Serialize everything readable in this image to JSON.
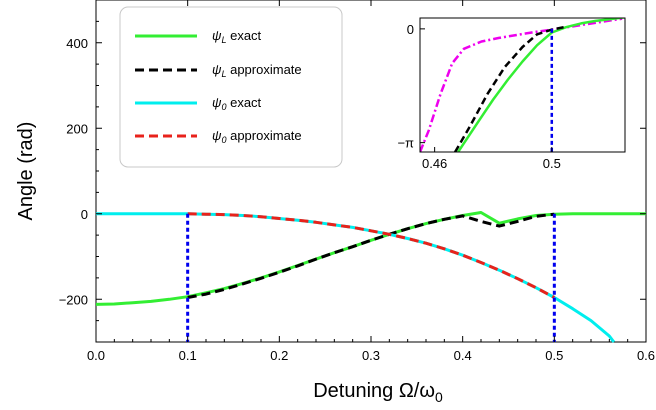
{
  "chart_data": {
    "type": "line",
    "xlabel": "Detuning Ω/ω",
    "xlabel_sub": "0",
    "ylabel": "Angle  (rad)",
    "xlim": [
      0.0,
      0.6
    ],
    "ylim": [
      -300,
      500
    ],
    "xticks": [
      0.0,
      0.1,
      0.2,
      0.3,
      0.4,
      0.5,
      0.6
    ],
    "xtick_labels": [
      "0.0",
      "0.1",
      "0.2",
      "0.3",
      "0.4",
      "0.5",
      "0.6"
    ],
    "yticks": [
      -200,
      0,
      200,
      400
    ],
    "ytick_labels": [
      "−200",
      "0",
      "200",
      "400"
    ],
    "grid": false,
    "legend_position": "top-left",
    "colors": {
      "psiL_exact": "#33ee33",
      "psiL_approx": "#000000",
      "psi0_exact": "#00eeee",
      "psi0_approx": "#e8221b",
      "vlines": "#0000ee",
      "inset_dashdot": "#ee00ee"
    },
    "legend": [
      {
        "sym": "ψ",
        "sub": "L",
        "text": " exact"
      },
      {
        "sym": "ψ",
        "sub": "L",
        "text": " approximate"
      },
      {
        "sym": "ψ",
        "sub": "0",
        "text": " exact"
      },
      {
        "sym": "ψ",
        "sub": "0",
        "text": " approximate"
      }
    ],
    "series": [
      {
        "key": "psiL_exact",
        "style": "solid",
        "x": [
          0.0,
          0.02,
          0.04,
          0.06,
          0.08,
          0.1,
          0.12,
          0.14,
          0.16,
          0.18,
          0.2,
          0.22,
          0.24,
          0.26,
          0.28,
          0.3,
          0.32,
          0.34,
          0.36,
          0.38,
          0.4,
          0.42,
          0.44,
          0.46,
          0.48,
          0.5,
          0.52,
          0.54,
          0.56,
          0.58,
          0.6
        ],
        "y": [
          -212,
          -211,
          -208,
          -205,
          -200,
          -194,
          -185,
          -175,
          -163,
          -150,
          -136,
          -121,
          -106,
          -91,
          -77,
          -62,
          -48,
          -35,
          -23,
          -13,
          -4,
          3,
          -22,
          -12,
          -4,
          -1,
          0,
          0,
          0,
          0,
          0
        ]
      },
      {
        "key": "psiL_approx",
        "style": "dashed",
        "x": [
          0.1,
          0.12,
          0.14,
          0.16,
          0.18,
          0.2,
          0.22,
          0.24,
          0.26,
          0.28,
          0.3,
          0.32,
          0.34,
          0.36,
          0.38,
          0.4,
          0.42,
          0.44,
          0.46,
          0.48,
          0.5
        ],
        "y": [
          -196,
          -188,
          -177,
          -164,
          -151,
          -137,
          -122,
          -106,
          -91,
          -77,
          -62,
          -48,
          -35,
          -23,
          -13,
          -5,
          -18,
          -29,
          -18,
          -6,
          -1
        ]
      },
      {
        "key": "psi0_exact",
        "style": "solid",
        "x": [
          0.0,
          0.02,
          0.04,
          0.06,
          0.08,
          0.1,
          0.12,
          0.14,
          0.16,
          0.18,
          0.2,
          0.22,
          0.24,
          0.26,
          0.28,
          0.3,
          0.32,
          0.34,
          0.36,
          0.38,
          0.4,
          0.42,
          0.44,
          0.46,
          0.48,
          0.5,
          0.52,
          0.54,
          0.56,
          0.565
        ],
        "y": [
          0,
          0,
          0,
          0,
          0,
          0,
          -1,
          -2,
          -4,
          -7,
          -11,
          -15,
          -20,
          -26,
          -32,
          -40,
          -48,
          -58,
          -69,
          -82,
          -97,
          -114,
          -132,
          -152,
          -173,
          -196,
          -222,
          -250,
          -286,
          -300
        ]
      },
      {
        "key": "psi0_approx",
        "style": "dashed",
        "x": [
          0.1,
          0.12,
          0.14,
          0.16,
          0.18,
          0.2,
          0.22,
          0.24,
          0.26,
          0.28,
          0.3,
          0.32,
          0.34,
          0.36,
          0.38,
          0.4,
          0.42,
          0.44,
          0.46,
          0.48,
          0.5
        ],
        "y": [
          0,
          -1,
          -2,
          -4,
          -7,
          -11,
          -15,
          -20,
          -26,
          -32,
          -40,
          -48,
          -58,
          -69,
          -82,
          -97,
          -114,
          -132,
          -152,
          -173,
          -196
        ]
      }
    ],
    "vlines": [
      0.1,
      0.5
    ],
    "inset": {
      "xlim": [
        0.455,
        0.525
      ],
      "ylim": [
        -3.4,
        0.3
      ],
      "xticks": [
        0.46,
        0.5
      ],
      "xtick_labels": [
        "0.46",
        "0.5"
      ],
      "yticks": [
        0,
        -3.14159
      ],
      "ytick_labels": [
        "0",
        "−π"
      ],
      "vline": 0.5,
      "green": {
        "x": [
          0.468,
          0.475,
          0.48,
          0.485,
          0.49,
          0.495,
          0.5,
          0.505,
          0.51,
          0.515,
          0.52,
          0.525
        ],
        "y": [
          -3.4,
          -2.55,
          -1.95,
          -1.4,
          -0.9,
          -0.45,
          -0.1,
          0.05,
          0.15,
          0.22,
          0.27,
          0.32
        ]
      },
      "black": {
        "x": [
          0.467,
          0.472,
          0.478,
          0.484,
          0.49,
          0.495,
          0.5,
          0.505
        ],
        "y": [
          -3.4,
          -2.7,
          -1.8,
          -1.05,
          -0.5,
          -0.15,
          -0.02,
          0.06
        ]
      },
      "magenta": {
        "x": [
          0.455,
          0.458,
          0.462,
          0.466,
          0.47,
          0.476,
          0.482,
          0.488,
          0.494,
          0.5,
          0.508,
          0.516,
          0.524
        ],
        "y": [
          -3.4,
          -2.8,
          -1.8,
          -0.95,
          -0.55,
          -0.35,
          -0.25,
          -0.17,
          -0.09,
          -0.02,
          0.08,
          0.18,
          0.28
        ]
      }
    }
  }
}
